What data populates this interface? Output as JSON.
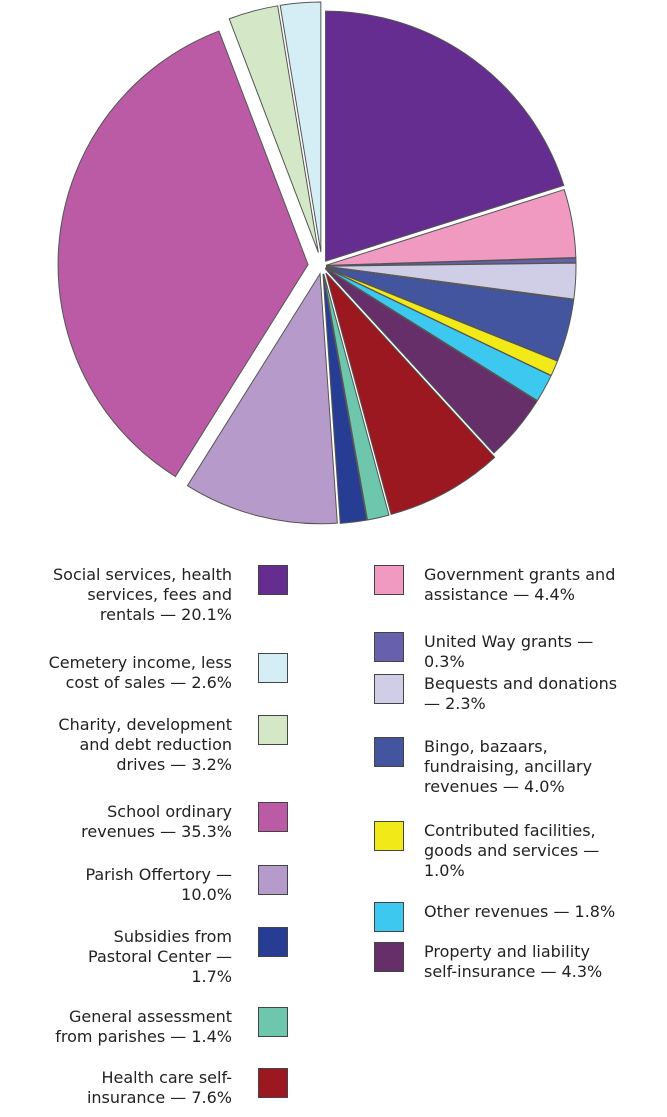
{
  "chart_data": {
    "type": "pie",
    "slices": [
      {
        "label": "Social services, health services, fees and rentals — 20.1%",
        "value": 20.1,
        "color": "#652d8f"
      },
      {
        "label": "Government grants and assistance — 4.4%",
        "value": 4.4,
        "color": "#f09ac2"
      },
      {
        "label": "United Way grants — 0.3%",
        "value": 0.3,
        "color": "#6660ad"
      },
      {
        "label": "Bequests and donations — 2.3%",
        "value": 2.3,
        "color": "#d0cde7"
      },
      {
        "label": "Bingo, bazaars, fundraising, ancillary revenues — 4.0%",
        "value": 4.0,
        "color": "#44559f"
      },
      {
        "label": "Contributed facilities, goods and services — 1.0%",
        "value": 1.0,
        "color": "#f2ea18"
      },
      {
        "label": "Other revenues — 1.8%",
        "value": 1.8,
        "color": "#3dc8f0"
      },
      {
        "label": "Property and liability self-insurance — 4.3%",
        "value": 4.3,
        "color": "#662f69"
      },
      {
        "label": "Health care self-insurance — 7.6%",
        "value": 7.6,
        "color": "#9b1820"
      },
      {
        "label": "General assessment from parishes — 1.4%",
        "value": 1.4,
        "color": "#6ec6ad"
      },
      {
        "label": "Subsidies from Pastoral Center — 1.7%",
        "value": 1.7,
        "color": "#273d93"
      },
      {
        "label": "Parish Offertory — 10.0%",
        "value": 10.0,
        "color": "#b69bca"
      },
      {
        "label": "School ordinary revenues — 35.3%",
        "value": 35.3,
        "color": "#bb5ba5"
      },
      {
        "label": "Charity, development and debt reduction drives — 3.2%",
        "value": 3.2,
        "color": "#d4e8c8"
      },
      {
        "label": "Cemetery income, less cost of sales — 2.6%",
        "value": 2.6,
        "color": "#d5eef6"
      }
    ],
    "legend": {
      "left": [
        {
          "text": "Social services, health\nservices, fees and\nrentals — 20.1%",
          "color": "#652d8f"
        },
        {
          "text": "Cemetery income, less\ncost of sales — 2.6%",
          "color": "#d5eef6"
        },
        {
          "text": "Charity, development\nand debt reduction\ndrives — 3.2%",
          "color": "#d4e8c8"
        },
        {
          "text": "School ordinary\nrevenues — 35.3%",
          "color": "#bb5ba5"
        },
        {
          "text": "Parish Offertory —\n10.0%",
          "color": "#b69bca"
        },
        {
          "text": "Subsidies from\nPastoral Center —\n1.7%",
          "color": "#273d93"
        },
        {
          "text": "General assessment\nfrom parishes — 1.4%",
          "color": "#6ec6ad"
        },
        {
          "text": "Health care self-\ninsurance — 7.6%",
          "color": "#9b1820"
        }
      ],
      "right": [
        {
          "text": "Government grants and\nassistance — 4.4%",
          "color": "#f09ac2"
        },
        {
          "text": "United Way grants —\n0.3%",
          "color": "#6660ad"
        },
        {
          "text": "Bequests and donations\n— 2.3%",
          "color": "#d0cde7"
        },
        {
          "text": "Bingo, bazaars,\nfundraising, ancillary\nrevenues — 4.0%",
          "color": "#44559f"
        },
        {
          "text": "Contributed facilities,\ngoods and services —\n1.0%",
          "color": "#f2ea18"
        },
        {
          "text": "Other revenues — 1.8%",
          "color": "#3dc8f0"
        },
        {
          "text": "Property and liability\nself-insurance — 4.3%",
          "color": "#662f69"
        }
      ]
    }
  }
}
